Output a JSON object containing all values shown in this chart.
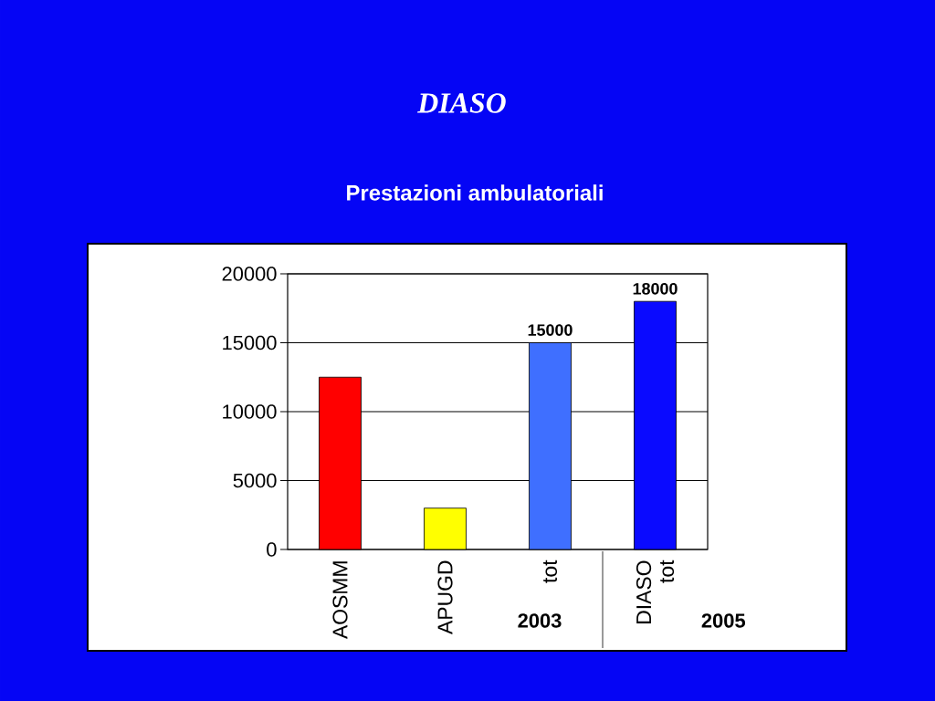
{
  "chart_data": {
    "type": "bar",
    "title": "DIASO",
    "subtitle": "Prestazioni ambulatoriali",
    "categories": [
      "AOSMM",
      "APUGD",
      "tot",
      "DIASO tot"
    ],
    "values": [
      12500,
      3000,
      15000,
      18000
    ],
    "colors": [
      "#ff0000",
      "#ffff00",
      "#3f6fff",
      "#0a0aff"
    ],
    "value_labels": [
      null,
      null,
      "15000",
      "18000"
    ],
    "ylim": [
      0,
      20000
    ],
    "yticks": [
      0,
      5000,
      10000,
      15000,
      20000
    ],
    "grid": "y",
    "annotations": [
      "2003",
      "2005"
    ]
  }
}
